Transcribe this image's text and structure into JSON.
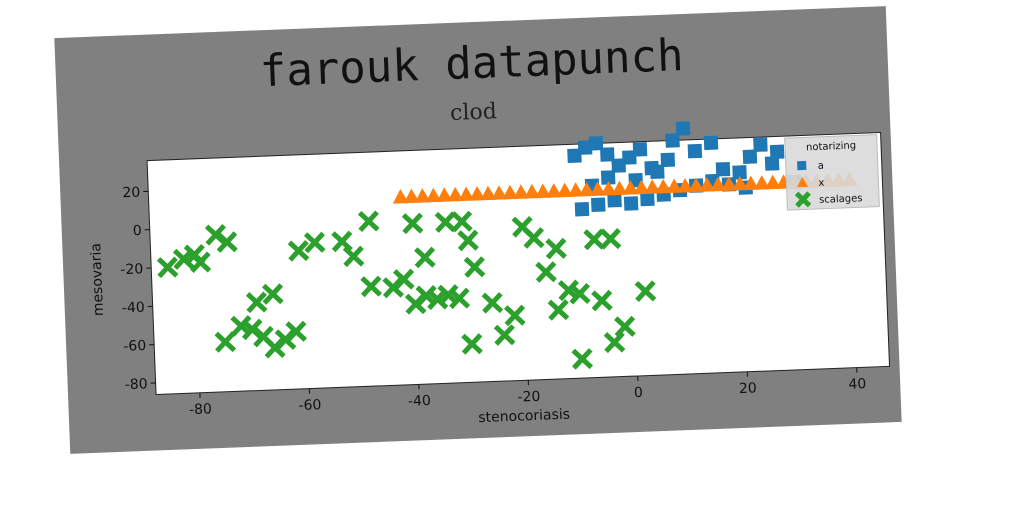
{
  "chart_data": {
    "type": "scatter",
    "title": "farouk datapunch",
    "subtitle": "clod",
    "xlabel": "stenocoriasis",
    "ylabel": "mesovaria",
    "xlim": [
      -88,
      46
    ],
    "ylim": [
      -86,
      36
    ],
    "xticks": [
      -80,
      -60,
      -40,
      -20,
      0,
      20,
      40
    ],
    "yticks": [
      20,
      0,
      -20,
      -40,
      -60,
      -80
    ],
    "legend": {
      "title": "notarizing",
      "position": "top-right"
    },
    "grid": false,
    "series": [
      {
        "name": "a",
        "marker": "square",
        "color": "#1f77b4",
        "points": [
          [
            -10,
            30
          ],
          [
            -8,
            34
          ],
          [
            -6,
            36
          ],
          [
            -4,
            30
          ],
          [
            -2,
            24
          ],
          [
            0,
            28
          ],
          [
            2,
            32
          ],
          [
            5,
            20
          ],
          [
            8,
            36
          ],
          [
            10,
            42
          ],
          [
            12,
            30
          ],
          [
            15,
            34
          ],
          [
            17,
            20
          ],
          [
            20,
            18
          ],
          [
            22,
            26
          ],
          [
            24,
            32
          ],
          [
            26,
            22
          ],
          [
            -9,
            2
          ],
          [
            -6,
            4
          ],
          [
            -3,
            6
          ],
          [
            0,
            4
          ],
          [
            3,
            6
          ],
          [
            6,
            8
          ],
          [
            9,
            10
          ],
          [
            12,
            12
          ],
          [
            15,
            14
          ],
          [
            18,
            12
          ],
          [
            21,
            10
          ],
          [
            -7,
            14
          ],
          [
            -4,
            18
          ],
          [
            1,
            16
          ],
          [
            4,
            22
          ],
          [
            7,
            26
          ],
          [
            27,
            28
          ],
          [
            30,
            12
          ]
        ]
      },
      {
        "name": "x",
        "marker": "triangle",
        "color": "#ff7f0e",
        "points": [
          [
            -42,
            12
          ],
          [
            -40,
            12
          ],
          [
            -38,
            12
          ],
          [
            -36,
            12
          ],
          [
            -34,
            12
          ],
          [
            -32,
            12
          ],
          [
            -30,
            12
          ],
          [
            -28,
            12
          ],
          [
            -26,
            12
          ],
          [
            -24,
            12
          ],
          [
            -22,
            12
          ],
          [
            -20,
            12
          ],
          [
            -18,
            12
          ],
          [
            -16,
            12
          ],
          [
            -14,
            12
          ],
          [
            -12,
            12
          ],
          [
            -10,
            12
          ],
          [
            -8,
            12
          ],
          [
            -6,
            12
          ],
          [
            -4,
            12
          ],
          [
            -2,
            12
          ],
          [
            0,
            12
          ],
          [
            2,
            12
          ],
          [
            4,
            12
          ],
          [
            6,
            12
          ],
          [
            8,
            12
          ],
          [
            10,
            12
          ],
          [
            12,
            12
          ],
          [
            14,
            12
          ],
          [
            16,
            12
          ],
          [
            18,
            12
          ],
          [
            20,
            12
          ],
          [
            22,
            12
          ],
          [
            24,
            12
          ],
          [
            26,
            12
          ],
          [
            28,
            12
          ],
          [
            30,
            12
          ],
          [
            32,
            12
          ],
          [
            34,
            12
          ],
          [
            36,
            12
          ],
          [
            38,
            12
          ],
          [
            40,
            12
          ]
        ]
      },
      {
        "name": "scalages",
        "marker": "x",
        "color": "#2ca02c",
        "points": [
          [
            -85,
            -20
          ],
          [
            -82,
            -16
          ],
          [
            -80,
            -14
          ],
          [
            -79,
            -18
          ],
          [
            -76,
            -4
          ],
          [
            -74,
            -8
          ],
          [
            -75,
            -60
          ],
          [
            -72,
            -52
          ],
          [
            -70,
            -54
          ],
          [
            -68,
            -58
          ],
          [
            -66,
            -64
          ],
          [
            -64,
            -60
          ],
          [
            -62,
            -56
          ],
          [
            -66,
            -36
          ],
          [
            -69,
            -40
          ],
          [
            -61,
            -14
          ],
          [
            -58,
            -10
          ],
          [
            -53,
            -10
          ],
          [
            -51,
            -18
          ],
          [
            -48,
            0
          ],
          [
            -48,
            -34
          ],
          [
            -44,
            -35
          ],
          [
            -42,
            -31
          ],
          [
            -40,
            -44
          ],
          [
            -38,
            -40
          ],
          [
            -36,
            -42
          ],
          [
            -38,
            -20
          ],
          [
            -40,
            -2
          ],
          [
            -34,
            -2
          ],
          [
            -31,
            -2
          ],
          [
            -30,
            -12
          ],
          [
            -29,
            -26
          ],
          [
            -26,
            -45
          ],
          [
            -24,
            -62
          ],
          [
            -20,
            -6
          ],
          [
            -18,
            -12
          ],
          [
            -16,
            -30
          ],
          [
            -14,
            -50
          ],
          [
            -14,
            -18
          ],
          [
            -12,
            -40
          ],
          [
            -10,
            -42
          ],
          [
            -10,
            -76
          ],
          [
            -7,
            -14
          ],
          [
            -4,
            -14
          ],
          [
            -6,
            -46
          ],
          [
            -4,
            -68
          ],
          [
            -2,
            -60
          ],
          [
            2,
            -42
          ],
          [
            -32,
            -42
          ],
          [
            -30,
            -66
          ],
          [
            -22,
            -52
          ],
          [
            -34,
            -40
          ]
        ]
      }
    ]
  }
}
